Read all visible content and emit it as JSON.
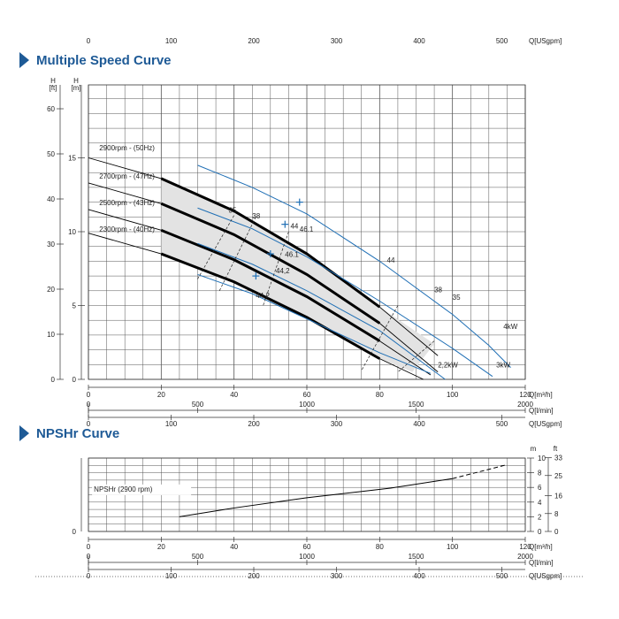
{
  "header": {
    "top_scale_ticks": [
      "0",
      "100",
      "200",
      "300",
      "400",
      "500"
    ],
    "top_scale_unit": "Q[USgpm]"
  },
  "sections": {
    "multiple_speed_title": "Multiple Speed Curve",
    "npshr_title": "NPSHr Curve"
  },
  "colors": {
    "accent": "#1e5a96",
    "curve_black": "#000000",
    "curve_blue": "#1f6fb5",
    "band_fill": "#e3e3e3"
  },
  "chart_data": [
    {
      "type": "line",
      "title": "Multiple Speed Curve",
      "x_unit": "Q[m³/h]",
      "xlim": [
        0,
        120
      ],
      "ylim": [
        0,
        20
      ],
      "y_unit_left_ft": "H [ft]",
      "y_unit_left_m": "H [m]",
      "y_ticks_ft": [
        "0",
        "10",
        "20",
        "30",
        "40",
        "50",
        "60"
      ],
      "y_ticks_m": [
        "0",
        "5",
        "10",
        "15"
      ],
      "x_ticks": [
        "0",
        "20",
        "40",
        "60",
        "80",
        "100",
        "120"
      ],
      "secondary_axes": [
        {
          "unit": "Q[l/min]",
          "ticks": [
            "0",
            "500",
            "1000",
            "1500",
            "2000"
          ]
        },
        {
          "unit": "Q[USgpm]",
          "ticks": [
            "0",
            "100",
            "200",
            "300",
            "400",
            "500"
          ]
        }
      ],
      "grid": true,
      "series": [
        {
          "name": "2900rpm - (50Hz)",
          "x": [
            0,
            20,
            40,
            60,
            80,
            96
          ],
          "y": [
            15.0,
            13.6,
            11.4,
            8.5,
            4.9,
            1.6
          ]
        },
        {
          "name": "2700rpm - (47Hz)",
          "x": [
            0,
            20,
            40,
            60,
            80,
            96
          ],
          "y": [
            13.3,
            11.9,
            9.8,
            7.1,
            3.8,
            0.5
          ]
        },
        {
          "name": "2500rpm - (43Hz)",
          "x": [
            0,
            20,
            40,
            60,
            80,
            94
          ],
          "y": [
            11.5,
            10.1,
            8.1,
            5.6,
            2.6,
            0.3
          ]
        },
        {
          "name": "2300rpm - (40Hz)",
          "x": [
            0,
            20,
            40,
            60,
            80,
            92
          ],
          "y": [
            9.9,
            8.5,
            6.6,
            4.2,
            1.4,
            0.0
          ]
        }
      ],
      "blue_curves": [
        {
          "x": [
            30,
            45,
            60,
            80,
            100,
            110,
            116
          ],
          "y": [
            14.5,
            13.0,
            11.2,
            8.0,
            4.4,
            2.3,
            0.8
          ]
        },
        {
          "x": [
            30,
            45,
            60,
            80,
            100,
            111
          ],
          "y": [
            11.6,
            10.2,
            8.3,
            5.3,
            2.1,
            0.2
          ]
        },
        {
          "x": [
            30,
            45,
            60,
            80,
            98
          ],
          "y": [
            9.2,
            7.8,
            6.0,
            3.3,
            0.0
          ]
        },
        {
          "x": [
            30,
            45,
            60,
            80,
            94
          ],
          "y": [
            7.1,
            5.8,
            4.1,
            1.8,
            0.4
          ]
        }
      ],
      "efficiency_labels": [
        "35",
        "38",
        "44",
        "46.1",
        "46.1",
        "44,2",
        "44,2",
        "44",
        "38",
        "35"
      ],
      "efficiency_markers": [
        {
          "x": 58,
          "y": 12.0
        },
        {
          "x": 54,
          "y": 10.5
        },
        {
          "x": 50,
          "y": 8.5
        },
        {
          "x": 46,
          "y": 7.0
        }
      ],
      "band_upper": {
        "x": [
          20,
          40,
          60,
          80,
          95
        ],
        "y": [
          13.6,
          11.4,
          8.5,
          4.9,
          2.4
        ]
      },
      "band_lower": {
        "x": [
          20,
          40,
          60,
          80,
          89
        ],
        "y": [
          8.5,
          6.6,
          4.2,
          1.4,
          0.5
        ]
      },
      "power_labels": [
        "4kW",
        "3kW",
        "2,2kW"
      ]
    },
    {
      "type": "line",
      "title": "NPSHr Curve",
      "x_unit": "Q[m³/h]",
      "xlim": [
        0,
        120
      ],
      "ylim": [
        0,
        10
      ],
      "y_ticks_m": [
        "0",
        "2",
        "4",
        "6",
        "8",
        "10"
      ],
      "y_ticks_ft": [
        "0",
        "8",
        "16",
        "25",
        "33"
      ],
      "y_unit_m": "m",
      "y_unit_ft": "ft",
      "x_ticks": [
        "0",
        "20",
        "40",
        "60",
        "80",
        "100",
        "120"
      ],
      "secondary_axes": [
        {
          "unit": "Q[l/min]",
          "ticks": [
            "0",
            "500",
            "1000",
            "1500",
            "2000"
          ]
        },
        {
          "unit": "Q[USgpm]",
          "ticks": [
            "0",
            "100",
            "200",
            "300",
            "400",
            "500"
          ]
        }
      ],
      "grid": true,
      "series": [
        {
          "name": "NPSHr (2900 rpm)",
          "x": [
            25,
            40,
            60,
            83,
            100
          ],
          "y": [
            2.0,
            3.2,
            4.6,
            5.9,
            7.2
          ]
        }
      ],
      "dashed_extension": {
        "x": [
          100,
          115
        ],
        "y": [
          7.2,
          9.1
        ]
      }
    }
  ]
}
